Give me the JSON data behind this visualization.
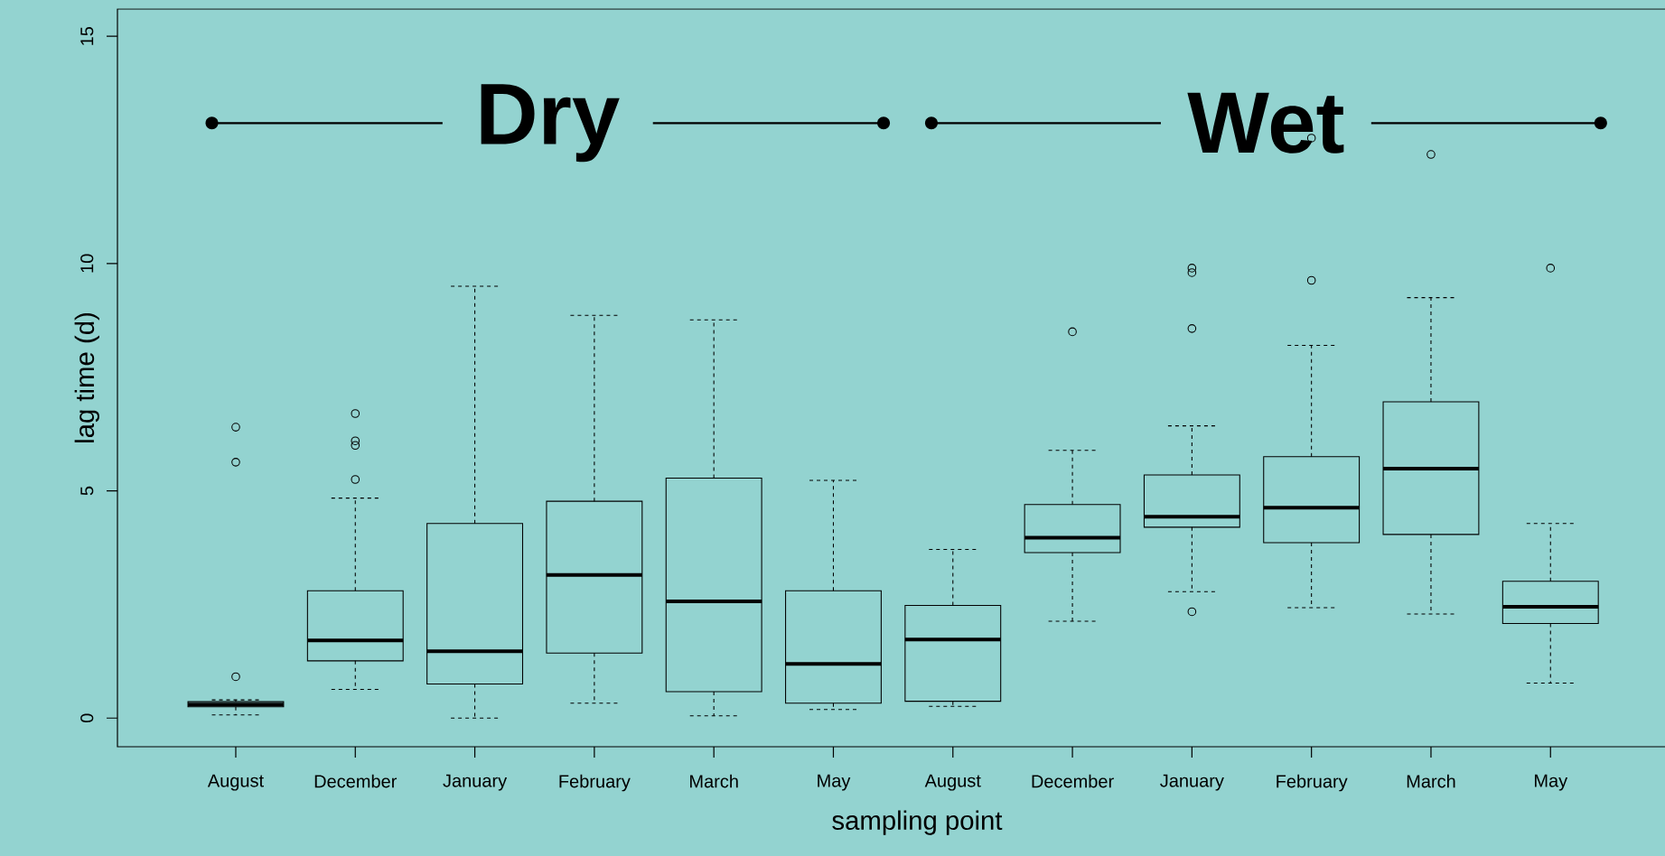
{
  "chart_data": {
    "type": "box",
    "xlabel": "sampling point",
    "ylabel": "lag time (d)",
    "categories": [
      "August",
      "December",
      "January",
      "February",
      "March",
      "May",
      "August",
      "December",
      "January",
      "February",
      "March",
      "May"
    ],
    "boxes": [
      {
        "low": 0.07,
        "q1": 0.25,
        "median": 0.3,
        "q3": 0.36,
        "high": 0.4,
        "outliers": [
          0.91,
          5.63,
          6.4
        ]
      },
      {
        "low": 0.63,
        "q1": 1.26,
        "median": 1.71,
        "q3": 2.8,
        "high": 4.84,
        "outliers": [
          5.25,
          6.0,
          6.1,
          6.7
        ]
      },
      {
        "low": 0.0,
        "q1": 0.75,
        "median": 1.47,
        "q3": 4.28,
        "high": 9.5
      },
      {
        "low": 0.33,
        "q1": 1.43,
        "median": 3.15,
        "q3": 4.77,
        "high": 8.86
      },
      {
        "low": 0.05,
        "q1": 0.58,
        "median": 2.57,
        "q3": 5.28,
        "high": 8.76
      },
      {
        "low": 0.19,
        "q1": 0.33,
        "median": 1.19,
        "q3": 2.8,
        "high": 5.23
      },
      {
        "low": 0.26,
        "q1": 0.37,
        "median": 1.73,
        "q3": 2.48,
        "high": 3.71
      },
      {
        "low": 2.13,
        "q1": 3.64,
        "median": 3.97,
        "q3": 4.7,
        "high": 5.89,
        "outliers": [
          8.5
        ]
      },
      {
        "low": 2.78,
        "q1": 4.2,
        "median": 4.43,
        "q3": 5.35,
        "high": 6.43,
        "outliers": [
          2.34,
          8.57,
          9.8,
          9.9
        ]
      },
      {
        "low": 2.43,
        "q1": 3.86,
        "median": 4.63,
        "q3": 5.75,
        "high": 8.2,
        "outliers": [
          9.63,
          12.76
        ]
      },
      {
        "low": 2.29,
        "q1": 4.04,
        "median": 5.49,
        "q3": 6.96,
        "high": 9.25,
        "outliers": [
          12.4
        ]
      },
      {
        "low": 0.77,
        "q1": 2.08,
        "median": 2.45,
        "q3": 3.01,
        "high": 4.28,
        "outliers": [
          9.9
        ]
      }
    ],
    "ylim": [
      -0.63,
      15.6
    ],
    "yticks": [
      0,
      5,
      10,
      15
    ],
    "annotations": [
      "Dry",
      "Wet"
    ]
  }
}
